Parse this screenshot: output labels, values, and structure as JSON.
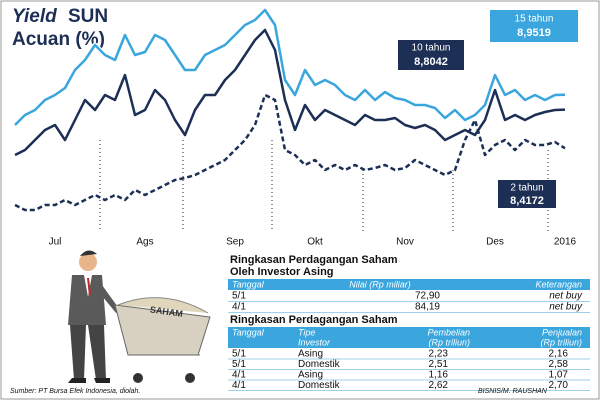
{
  "chart_data": {
    "type": "line",
    "title_lines": [
      "Yield",
      "SUN",
      "Acuan (%)"
    ],
    "categories": [
      null,
      null,
      null,
      null,
      "Jul",
      null,
      null,
      null,
      null,
      null,
      null,
      null,
      null,
      "Ags",
      null,
      null,
      null,
      null,
      null,
      null,
      null,
      null,
      "Sep",
      null,
      null,
      null,
      null,
      null,
      null,
      null,
      "Okt",
      null,
      null,
      null,
      null,
      null,
      null,
      null,
      null,
      "Nov",
      null,
      null,
      null,
      null,
      null,
      null,
      null,
      null,
      "Des",
      null,
      null,
      null,
      null,
      null,
      null,
      "2016"
    ],
    "ylim": [
      7.5,
      9.8
    ],
    "series": [
      {
        "name": "15 tahun",
        "end_label": "8,9519",
        "color": "#3aa6dd",
        "dashed": false,
        "values": [
          8.65,
          8.75,
          8.8,
          8.9,
          8.95,
          9.02,
          9.2,
          9.3,
          9.45,
          9.35,
          9.3,
          9.55,
          9.35,
          9.38,
          9.55,
          9.5,
          9.35,
          9.2,
          9.2,
          9.35,
          9.4,
          9.45,
          9.55,
          9.65,
          9.7,
          9.8,
          9.65,
          9.1,
          8.95,
          9.2,
          9.05,
          9.1,
          9.05,
          8.95,
          8.9,
          9.0,
          8.9,
          8.98,
          8.92,
          8.9,
          8.85,
          8.85,
          8.82,
          8.72,
          8.8,
          8.7,
          8.75,
          8.85,
          9.15,
          8.95,
          9.0,
          8.9,
          8.95,
          8.9,
          8.95,
          8.9519
        ]
      },
      {
        "name": "10 tahun",
        "end_label": "8,8042",
        "color": "#1d2f55",
        "dashed": false,
        "values": [
          8.35,
          8.4,
          8.5,
          8.6,
          8.65,
          8.5,
          8.7,
          8.9,
          8.8,
          8.95,
          8.9,
          9.15,
          8.75,
          8.8,
          9.0,
          8.9,
          8.7,
          8.55,
          8.8,
          8.95,
          8.95,
          9.1,
          9.2,
          9.35,
          9.5,
          9.6,
          9.4,
          8.9,
          8.6,
          8.85,
          8.7,
          8.8,
          8.75,
          8.7,
          8.65,
          8.75,
          8.7,
          8.7,
          8.72,
          8.65,
          8.62,
          8.65,
          8.6,
          8.5,
          8.55,
          8.6,
          8.55,
          8.7,
          9.0,
          8.7,
          8.75,
          8.7,
          8.75,
          8.78,
          8.8,
          8.8042
        ]
      },
      {
        "name": "2 tahun",
        "end_label": "8,4172",
        "color": "#1d2f55",
        "dashed": true,
        "values": [
          7.85,
          7.8,
          7.8,
          7.85,
          7.85,
          7.9,
          7.85,
          7.9,
          7.95,
          7.9,
          7.95,
          7.9,
          8.0,
          7.95,
          8.0,
          8.05,
          8.1,
          8.12,
          8.15,
          8.2,
          8.25,
          8.3,
          8.4,
          8.5,
          8.65,
          8.95,
          8.9,
          8.4,
          8.35,
          8.25,
          8.3,
          8.2,
          8.25,
          8.2,
          8.25,
          8.2,
          8.22,
          8.25,
          8.2,
          8.22,
          8.3,
          8.25,
          8.2,
          8.15,
          8.2,
          8.5,
          8.7,
          8.35,
          8.45,
          8.5,
          8.4,
          8.5,
          8.45,
          8.45,
          8.48,
          8.4172
        ]
      }
    ]
  },
  "illustration_text": "SAHAM",
  "table1": {
    "title_lines": [
      "Ringkasan Perdagangan Saham",
      "Oleh Investor Asing"
    ],
    "headers": [
      "Tanggal",
      "Nilai (Rp miliar)",
      "Keterangan"
    ],
    "rows": [
      [
        "5/1",
        "72,90",
        "net buy"
      ],
      [
        "4/1",
        "84,19",
        "net buy"
      ]
    ]
  },
  "table2": {
    "title": "Ringkasan Perdagangan Saham",
    "headers": [
      [
        "Tanggal"
      ],
      [
        "Tipe",
        "Investor"
      ],
      [
        "Pembelian",
        "(Rp triliun)"
      ],
      [
        "Penjualan",
        "(Rp triliun)"
      ]
    ],
    "rows": [
      [
        "5/1",
        "Asing",
        "2,23",
        "2,16"
      ],
      [
        "5/1",
        "Domestik",
        "2,51",
        "2,58"
      ],
      [
        "4/1",
        "Asing",
        "1,16",
        "1,07"
      ],
      [
        "4/1",
        "Domestik",
        "2,62",
        "2,70"
      ]
    ]
  },
  "source": "Sumber: PT Bursa Efek Indonesia, diolah.",
  "credit": "BISNIS/M. RAUSHAN"
}
